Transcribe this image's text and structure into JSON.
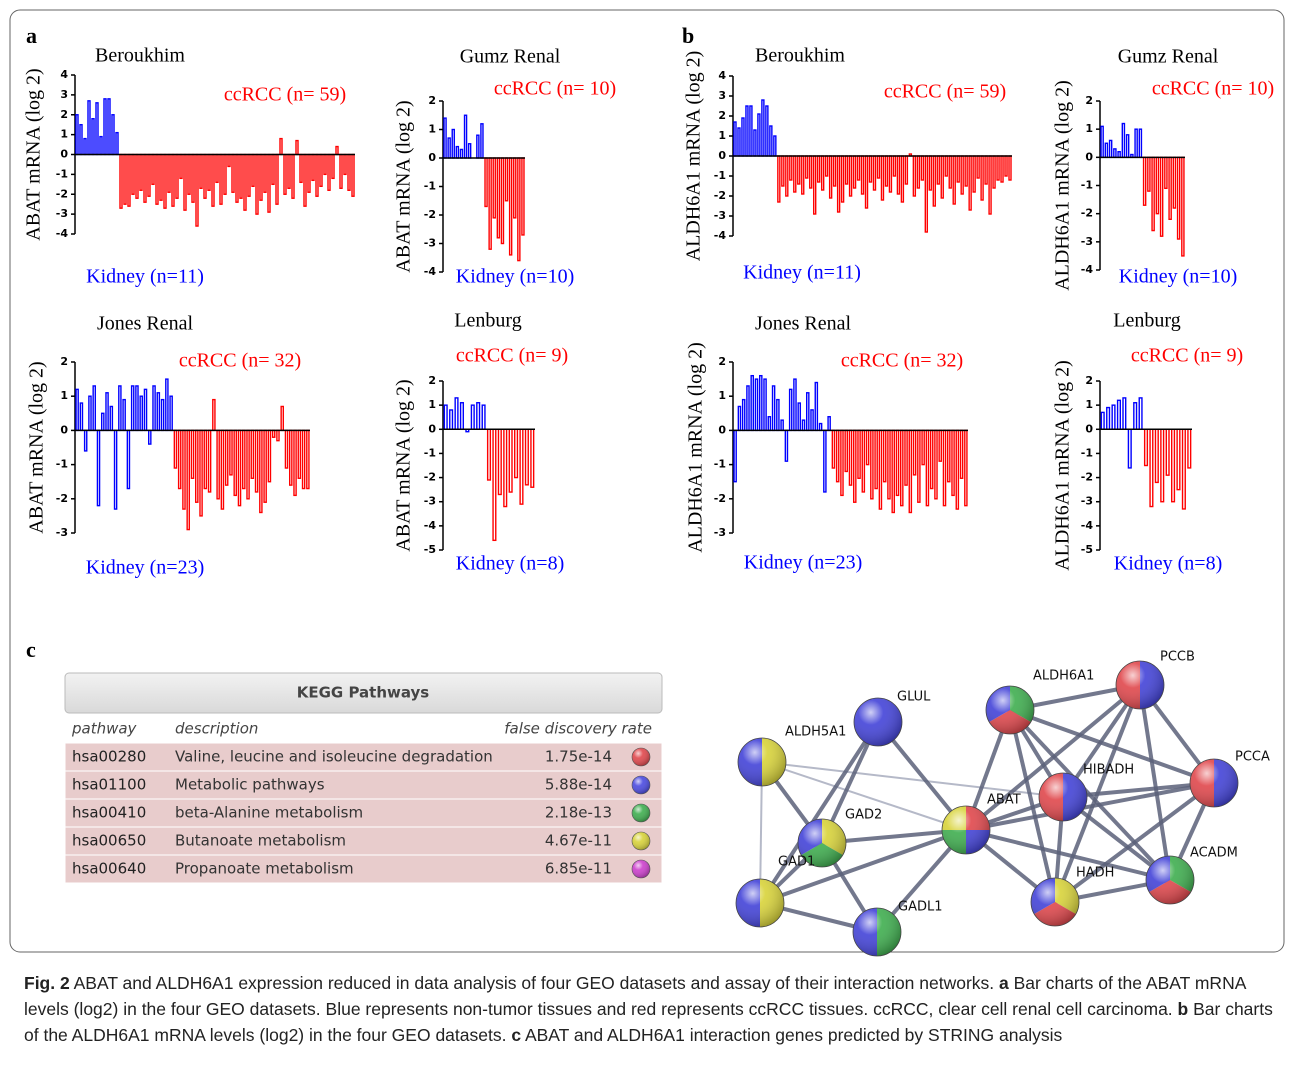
{
  "panel_labels": [
    "a",
    "b",
    "c"
  ],
  "chart_data": [
    {
      "type": "bar",
      "title": "Beroukhim",
      "ylabel": "ABAT mRNA (log 2)",
      "ylim": [
        -4,
        4
      ],
      "yticks": [
        -4,
        -3,
        -2,
        -1,
        0,
        1,
        2,
        3,
        4
      ],
      "series": [
        {
          "name": "Kidney (n=11)",
          "color": "#0000ff",
          "values": [
            2.0,
            1.5,
            0.8,
            2.7,
            1.8,
            2.6,
            0.9,
            2.8,
            2.8,
            2.0,
            1.1
          ]
        },
        {
          "name": "ccRCC (n= 59)",
          "color": "#ff0000",
          "values": [
            -2.7,
            -2.5,
            -2.6,
            -2.0,
            -2.2,
            -1.8,
            -2.4,
            -2.1,
            -1.5,
            -2.5,
            -2.3,
            -2.7,
            -1.9,
            -2.6,
            -2.2,
            -1.2,
            -2.8,
            -2.0,
            -2.4,
            -3.6,
            -1.7,
            -2.2,
            -1.8,
            -2.6,
            -1.4,
            -2.5,
            -2.0,
            -0.6,
            -1.9,
            -2.4,
            -2.2,
            -2.8,
            -2.1,
            -1.6,
            -3.0,
            -2.3,
            -1.9,
            -2.9,
            -1.5,
            -2.5,
            0.8,
            -2.0,
            -1.7,
            -2.2,
            0.7,
            -1.4,
            -2.6,
            -1.9,
            -1.3,
            -2.1,
            -1.6,
            -1.0,
            -1.8,
            -1.2,
            0.4,
            -1.7,
            -1.0,
            -1.8,
            -2.1
          ]
        }
      ]
    },
    {
      "type": "bar",
      "title": "Gumz Renal",
      "ylabel": "ABAT mRNA (log 2)",
      "ylim": [
        -4,
        2
      ],
      "yticks": [
        -4,
        -3,
        -2,
        -1,
        0,
        1,
        2
      ],
      "series": [
        {
          "name": "Kidney (n=10)",
          "color": "#0000ff",
          "values": [
            1.4,
            0.7,
            1.0,
            0.4,
            0.3,
            1.5,
            0.5,
            0.0,
            0.8,
            1.2
          ]
        },
        {
          "name": "ccRCC (n= 10)",
          "color": "#ff0000",
          "values": [
            -1.7,
            -3.2,
            -2.1,
            -2.8,
            -3.0,
            -1.5,
            -3.4,
            -2.1,
            -3.6,
            -2.7
          ]
        }
      ]
    },
    {
      "type": "bar",
      "title": "Jones Renal",
      "ylabel": "ABAT mRNA (log 2)",
      "ylim": [
        -3,
        2
      ],
      "yticks": [
        -3,
        -2,
        -1,
        0,
        1,
        2
      ],
      "series": [
        {
          "name": "Kidney (n=23)",
          "color": "#0000ff",
          "values": [
            1.2,
            0.8,
            -0.6,
            1.0,
            1.3,
            -2.2,
            0.5,
            1.1,
            0.7,
            -2.3,
            1.3,
            0.9,
            -1.7,
            1.3,
            1.3,
            1.0,
            1.2,
            -0.4,
            1.3,
            1.1,
            0.9,
            1.5,
            1.0
          ]
        },
        {
          "name": "ccRCC (n= 32)",
          "color": "#ff0000",
          "values": [
            -1.1,
            -1.7,
            -2.3,
            -2.9,
            -1.4,
            -2.1,
            -2.5,
            -1.7,
            -1.8,
            0.9,
            -2.0,
            -2.3,
            -1.6,
            -1.3,
            -1.9,
            -2.2,
            -1.7,
            -2.0,
            -1.4,
            -1.8,
            -2.4,
            -2.1,
            -1.5,
            -0.2,
            -0.3,
            0.7,
            -1.1,
            -1.6,
            -1.9,
            -1.4,
            -1.7,
            -1.7
          ]
        }
      ]
    },
    {
      "type": "bar",
      "title": "Lenburg",
      "ylabel": "ABAT mRNA (log 2)",
      "ylim": [
        -5,
        2
      ],
      "yticks": [
        -5,
        -4,
        -3,
        -2,
        -1,
        0,
        1,
        2
      ],
      "series": [
        {
          "name": "Kidney (n=8)",
          "color": "#0000ff",
          "values": [
            1.0,
            0.8,
            1.3,
            1.1,
            -0.1,
            1.0,
            1.1,
            1.0
          ]
        },
        {
          "name": "ccRCC (n= 9)",
          "color": "#ff0000",
          "values": [
            -2.1,
            -4.6,
            -2.7,
            -3.2,
            -2.6,
            -2.0,
            -3.1,
            -2.3,
            -2.4
          ]
        }
      ]
    },
    {
      "type": "bar",
      "title": "Beroukhim",
      "ylabel": "ALDH6A1 mRNA (log 2)",
      "ylim": [
        -4,
        4
      ],
      "yticks": [
        -4,
        -3,
        -2,
        -1,
        0,
        1,
        2,
        3,
        4
      ],
      "series": [
        {
          "name": "Kidney (n=11)",
          "color": "#0000ff",
          "values": [
            1.7,
            1.4,
            1.9,
            2.5,
            2.5,
            1.3,
            2.1,
            2.8,
            2.5,
            1.5,
            1.0
          ]
        },
        {
          "name": "ccRCC (n= 59)",
          "color": "#ff0000",
          "values": [
            -2.3,
            -1.5,
            -2.0,
            -1.2,
            -1.8,
            -1.4,
            -1.9,
            -1.1,
            -1.6,
            -2.9,
            -1.3,
            -1.7,
            -1.0,
            -2.1,
            -1.5,
            -2.8,
            -2.3,
            -1.4,
            -2.0,
            -1.6,
            -1.2,
            -1.9,
            -2.6,
            -1.3,
            -1.7,
            -1.1,
            -2.2,
            -1.5,
            -1.8,
            -1.0,
            -1.9,
            -2.3,
            -1.4,
            0.1,
            -2.0,
            -1.6,
            -1.2,
            -3.8,
            -1.7,
            -2.5,
            -1.4,
            -2.1,
            -1.0,
            -1.6,
            -2.4,
            -1.3,
            -1.9,
            -1.5,
            -2.7,
            -1.8,
            -1.1,
            -2.2,
            -1.4,
            -2.9,
            -1.6,
            -1.2,
            -1.3,
            -1.0,
            -1.2
          ]
        }
      ]
    },
    {
      "type": "bar",
      "title": "Gumz Renal",
      "ylabel": "ALDH6A1 mRNA (log 2)",
      "ylim": [
        -4,
        2
      ],
      "yticks": [
        -4,
        -3,
        -2,
        -1,
        0,
        1,
        2
      ],
      "series": [
        {
          "name": "Kidney (n=10)",
          "color": "#0000ff",
          "values": [
            1.1,
            0.5,
            0.6,
            0.3,
            0.2,
            1.2,
            0.8,
            0.1,
            1.0,
            1.0
          ]
        },
        {
          "name": "ccRCC (n= 10)",
          "color": "#ff0000",
          "values": [
            -1.7,
            -1.2,
            -2.6,
            -2.0,
            -2.8,
            -1.1,
            -2.2,
            -1.8,
            -2.9,
            -3.5
          ]
        }
      ]
    },
    {
      "type": "bar",
      "title": "Jones Renal",
      "ylabel": "ALDH6A1 mRNA (log 2)",
      "ylim": [
        -3,
        2
      ],
      "yticks": [
        -3,
        -2,
        -1,
        0,
        1,
        2
      ],
      "series": [
        {
          "name": "Kidney (n=23)",
          "color": "#0000ff",
          "values": [
            -1.5,
            0.7,
            0.9,
            1.3,
            1.6,
            1.5,
            1.6,
            1.5,
            0.4,
            1.3,
            0.9,
            0.3,
            -0.9,
            1.2,
            1.5,
            0.8,
            0.3,
            1.1,
            0.6,
            1.4,
            0.2,
            -1.8,
            0.4
          ]
        },
        {
          "name": "ccRCC (n= 32)",
          "color": "#ff0000",
          "values": [
            -1.1,
            -1.5,
            -1.9,
            -1.2,
            -1.6,
            -2.1,
            -1.4,
            -1.8,
            -1.0,
            -2.0,
            -1.7,
            -2.3,
            -1.5,
            -2.0,
            -2.4,
            -1.9,
            -2.2,
            -1.6,
            -2.4,
            -1.3,
            -2.1,
            -1.0,
            -2.2,
            -1.7,
            -2.0,
            -0.9,
            -2.2,
            -1.5,
            -1.9,
            -2.3,
            -1.4,
            -2.2
          ]
        }
      ]
    },
    {
      "type": "bar",
      "title": "Lenburg",
      "ylabel": "ALDH6A1 mRNA (log 2)",
      "ylim": [
        -5,
        2
      ],
      "yticks": [
        -5,
        -4,
        -3,
        -2,
        -1,
        0,
        1,
        2
      ],
      "series": [
        {
          "name": "Kidney (n=8)",
          "color": "#0000ff",
          "values": [
            0.7,
            0.9,
            1.0,
            1.2,
            1.3,
            -1.6,
            1.1,
            1.3
          ]
        },
        {
          "name": "ccRCC (n= 9)",
          "color": "#ff0000",
          "values": [
            -1.5,
            -3.2,
            -2.2,
            -3.0,
            -1.9,
            -3.0,
            -2.5,
            -3.3,
            -1.6
          ]
        }
      ]
    }
  ],
  "kegg_table": {
    "title": "KEGG Pathways",
    "columns": [
      "pathway",
      "description",
      "false discovery rate"
    ],
    "rows": [
      {
        "pathway": "hsa00280",
        "description": "Valine, leucine and isoleucine degradation",
        "fdr": "1.75e-14",
        "color": "#e0474c"
      },
      {
        "pathway": "hsa01100",
        "description": "Metabolic pathways",
        "fdr": "5.88e-14",
        "color": "#4a4ae0"
      },
      {
        "pathway": "hsa00410",
        "description": "beta-Alanine metabolism",
        "fdr": "2.18e-13",
        "color": "#3fae4f"
      },
      {
        "pathway": "hsa00650",
        "description": "Butanoate metabolism",
        "fdr": "4.67e-11",
        "color": "#d8d33a"
      },
      {
        "pathway": "hsa00640",
        "description": "Propanoate metabolism",
        "fdr": "6.85e-11",
        "color": "#cc3fcc"
      }
    ]
  },
  "network": {
    "nodes": [
      "GLUL",
      "ALDH5A1",
      "GAD2",
      "GAD1",
      "GADL1",
      "ABAT",
      "ALDH6A1",
      "PCCB",
      "HIBADH",
      "PCCA",
      "ACADM",
      "HADH"
    ]
  },
  "caption": {
    "label": "Fig. 2",
    "intro": " ABAT and ALDH6A1 expression reduced in data analysis of four GEO datasets and assay of their interaction networks. ",
    "parts": [
      {
        "label": "a",
        "text": " Bar charts of the ABAT mRNA levels (log2) in the four GEO datasets. Blue represents non-tumor tissues and red represents ccRCC tissues. ccRCC, clear cell renal cell carcinoma. "
      },
      {
        "label": "b",
        "text": " Bar charts of the ALDH6A1 mRNA levels (log2) in the four GEO datasets. "
      },
      {
        "label": "c",
        "text": " ABAT and ALDH6A1 interaction genes predicted by STRING analysis"
      }
    ]
  }
}
